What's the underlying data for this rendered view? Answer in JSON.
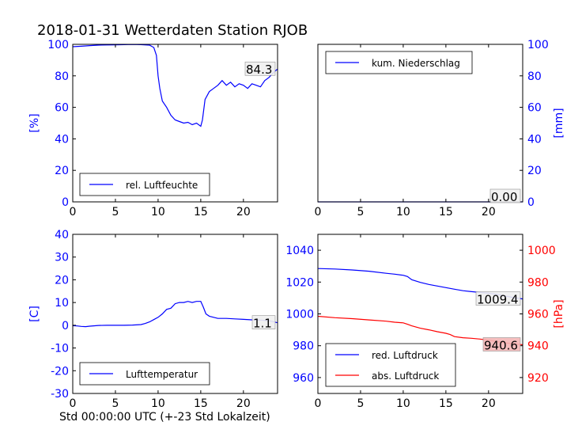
{
  "title": "2018-01-31 Wetterdaten Station RJOB",
  "x_axis_caption": "Std 00:00:00 UTC (+-23 Std Lokalzeit)",
  "colors": {
    "blue": "#0000ff",
    "red": "#ff0000",
    "axis": "#000000"
  },
  "chart_data": [
    {
      "type": "line",
      "panel": "top-left",
      "ylabel": "[%]",
      "xlim": [
        0,
        24
      ],
      "ylim": [
        0,
        100
      ],
      "xticks": [
        0,
        5,
        10,
        15,
        20
      ],
      "yticks": [
        0,
        20,
        40,
        60,
        80,
        100
      ],
      "legend_position": "lower-right",
      "series": [
        {
          "name": "rel. Luftfeuchte",
          "color": "#0000ff",
          "x": [
            0,
            1,
            2,
            3,
            4,
            5,
            6,
            7,
            8,
            9,
            9.5,
            9.8,
            10,
            10.2,
            10.5,
            11,
            11.5,
            12,
            12.5,
            13,
            13.5,
            14,
            14.5,
            15,
            15.2,
            15.5,
            16,
            16.5,
            17,
            17.5,
            18,
            18.5,
            19,
            19.5,
            20,
            20.5,
            21,
            21.5,
            22,
            22.5,
            23,
            23.5,
            24
          ],
          "y": [
            98.5,
            98.8,
            99.2,
            99.5,
            99.6,
            99.7,
            99.8,
            99.9,
            99.8,
            99.5,
            98,
            93,
            80,
            72,
            64,
            60,
            55,
            52,
            51,
            50,
            50.5,
            49,
            50,
            48,
            52,
            65,
            70,
            72,
            74,
            77,
            74,
            76,
            73,
            75,
            74,
            72,
            75,
            74,
            73,
            77,
            79,
            82,
            84.3
          ]
        }
      ],
      "last_value_label": "84.3"
    },
    {
      "type": "line",
      "panel": "top-right",
      "ylabel": "[mm]",
      "xlim": [
        0,
        24
      ],
      "ylim": [
        0,
        100
      ],
      "xticks": [
        0,
        5,
        10,
        15,
        20
      ],
      "yticks": [
        0,
        20,
        40,
        60,
        80,
        100
      ],
      "legend_position": "upper-left",
      "series": [
        {
          "name": "kum. Niederschlag",
          "color": "#0000ff",
          "x": [
            0,
            24
          ],
          "y": [
            0,
            0
          ]
        }
      ],
      "last_value_label": "0.00"
    },
    {
      "type": "line",
      "panel": "bottom-left",
      "ylabel": "[C]",
      "xlim": [
        0,
        24
      ],
      "ylim": [
        -30,
        40
      ],
      "xticks": [
        0,
        5,
        10,
        15,
        20
      ],
      "yticks": [
        -30,
        -20,
        -10,
        0,
        10,
        20,
        30,
        40
      ],
      "legend_position": "lower-right",
      "series": [
        {
          "name": "Lufttemperatur",
          "color": "#0000ff",
          "x": [
            0,
            0.5,
            1,
            1.5,
            2,
            3,
            4,
            5,
            6,
            7,
            8,
            8.5,
            9,
            9.5,
            10,
            10.5,
            11,
            11.5,
            12,
            12.5,
            13,
            13.5,
            14,
            14.5,
            15,
            15.3,
            15.6,
            16,
            16.5,
            17,
            18,
            19,
            20,
            21,
            22,
            23,
            24
          ],
          "y": [
            -0.2,
            -0.3,
            -0.5,
            -0.6,
            -0.4,
            -0.1,
            0,
            0,
            0,
            0.1,
            0.3,
            0.8,
            1.5,
            2.5,
            3.5,
            5,
            7,
            7.5,
            9.5,
            10,
            10,
            10.5,
            10,
            10.5,
            10.5,
            8,
            5,
            4,
            3.5,
            3,
            3,
            2.8,
            2.6,
            2.4,
            2.3,
            2.0,
            1.1
          ]
        }
      ],
      "last_value_label": "1.1"
    },
    {
      "type": "line",
      "panel": "bottom-right",
      "ylabel": "[hPa]",
      "xlim": [
        0,
        24
      ],
      "ylim_left": [
        950,
        1050
      ],
      "ylim_right": [
        910,
        1010
      ],
      "xticks": [
        0,
        5,
        10,
        15,
        20
      ],
      "yticks_left": [
        960,
        980,
        1000,
        1020,
        1040
      ],
      "yticks_right": [
        920,
        940,
        960,
        980,
        1000
      ],
      "legend_position": "lower-left",
      "series": [
        {
          "name": "red. Luftdruck",
          "color": "#0000ff",
          "axis": "left",
          "x": [
            0,
            2,
            4,
            6,
            8,
            9,
            10,
            10.5,
            11,
            12,
            13,
            14,
            15,
            16,
            17,
            18,
            19,
            20,
            21,
            22,
            23,
            24
          ],
          "y": [
            1028.5,
            1028.2,
            1027.6,
            1026.8,
            1025.5,
            1025,
            1024.3,
            1023.5,
            1021.5,
            1019.8,
            1018.5,
            1017.5,
            1016.5,
            1015.5,
            1014.6,
            1014,
            1013.5,
            1013,
            1012.3,
            1011.2,
            1010.2,
            1009.4
          ]
        },
        {
          "name": "abs. Luftdruck",
          "color": "#ff0000",
          "axis": "right",
          "x": [
            0,
            2,
            4,
            6,
            8,
            9,
            10,
            10.5,
            11,
            12,
            13,
            14,
            15,
            15.5,
            16,
            17,
            18,
            19,
            20,
            21,
            22,
            23,
            24
          ],
          "y": [
            958.5,
            957.6,
            957,
            956.2,
            955.4,
            954.8,
            954.4,
            953.5,
            952.5,
            951,
            950,
            948.8,
            947.8,
            947,
            945.7,
            945,
            944.7,
            944.2,
            943.5,
            942.6,
            941.8,
            941.2,
            940.6
          ]
        }
      ],
      "last_value_labels": [
        "1009.4",
        "940.6"
      ]
    }
  ]
}
